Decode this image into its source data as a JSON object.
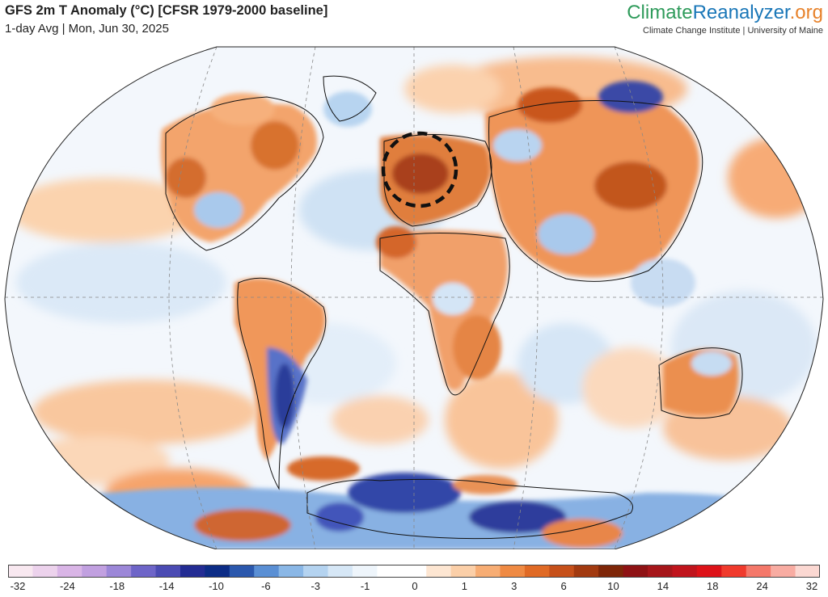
{
  "header": {
    "title": "GFS 2m T Anomaly (°C) [CFSR 1979-2000 baseline]",
    "subtitle": "1-day Avg | Mon, Jun 30, 2025"
  },
  "brand": {
    "logo_part1": "Climate",
    "logo_part2": "Reanalyzer",
    "logo_part3": ".org",
    "tagline": "Climate Change Institute | University of Maine"
  },
  "map": {
    "projection": "Winkel Tripel (world)",
    "highlight_circle": "western Europe (Iberia/France)",
    "ocean_color": "#ffffff",
    "coastline_color": "#111111",
    "graticule": "dashed grey"
  },
  "colorbar": {
    "labels": [
      "-32",
      "-24",
      "-18",
      "-14",
      "-10",
      "-6",
      "-3",
      "-1",
      "0",
      "1",
      "3",
      "6",
      "10",
      "14",
      "18",
      "24",
      "32"
    ],
    "colors": [
      "#f8e8f0",
      "#ecd2ec",
      "#d9b5e6",
      "#c1a0e0",
      "#9c87d8",
      "#6e65c8",
      "#4b4bb3",
      "#232c93",
      "#0c2c86",
      "#2b58ad",
      "#5a8fd4",
      "#8ab7e6",
      "#b4d3f0",
      "#d6e7f6",
      "#eef5fb",
      "#ffffff",
      "#ffffff",
      "#fde6d2",
      "#fbcfa8",
      "#f7ad74",
      "#ef8a43",
      "#e06a25",
      "#c6501a",
      "#a23a10",
      "#7e2608",
      "#8e1214",
      "#a6161a",
      "#c0141c",
      "#dd1218",
      "#f03a2c",
      "#f4786a",
      "#f8aca2",
      "#fbd8d2"
    ]
  }
}
